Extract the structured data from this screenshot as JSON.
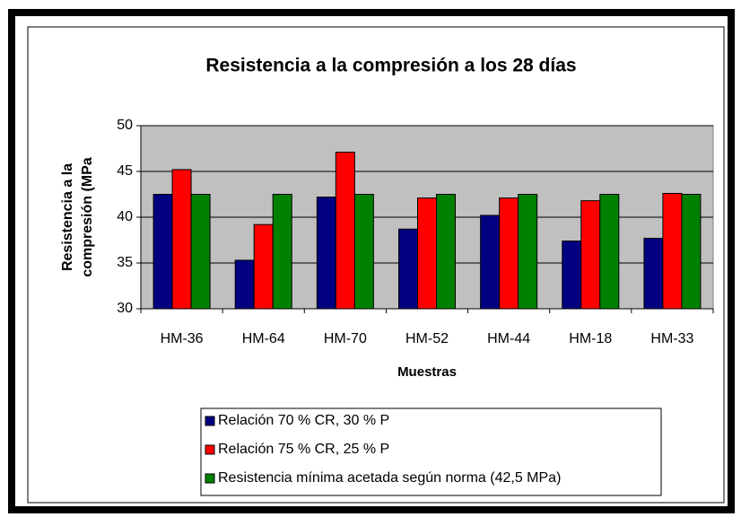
{
  "chart_data": {
    "type": "bar",
    "title": "Resistencia a la compresión a los 28 días",
    "y_label": [
      "Resistencia a la",
      "compresión (MPa"
    ],
    "x_label": "Muestras",
    "categories": [
      "HM-36",
      "HM-64",
      "HM-70",
      "HM-52",
      "HM-44",
      "HM-18",
      "HM-33"
    ],
    "series": [
      {
        "name": "Relación 70 % CR, 30 % P",
        "color": "#000080",
        "values": [
          42.5,
          35.3,
          42.2,
          38.7,
          40.2,
          37.4,
          37.7
        ]
      },
      {
        "name": "Relación 75 % CR, 25 % P",
        "color": "#ff0000",
        "values": [
          45.2,
          39.2,
          47.1,
          42.1,
          42.1,
          41.8,
          42.6
        ]
      },
      {
        "name": "Resistencia mínima acetada según norma (42,5 MPa)",
        "color": "#008000",
        "values": [
          42.5,
          42.5,
          42.5,
          42.5,
          42.5,
          42.5,
          42.5
        ]
      }
    ],
    "ylim": [
      30,
      50
    ],
    "yticks": [
      30,
      35,
      40,
      45,
      50
    ],
    "grid": true,
    "plot_background": "#c0c0c0",
    "legend": "bottom"
  }
}
